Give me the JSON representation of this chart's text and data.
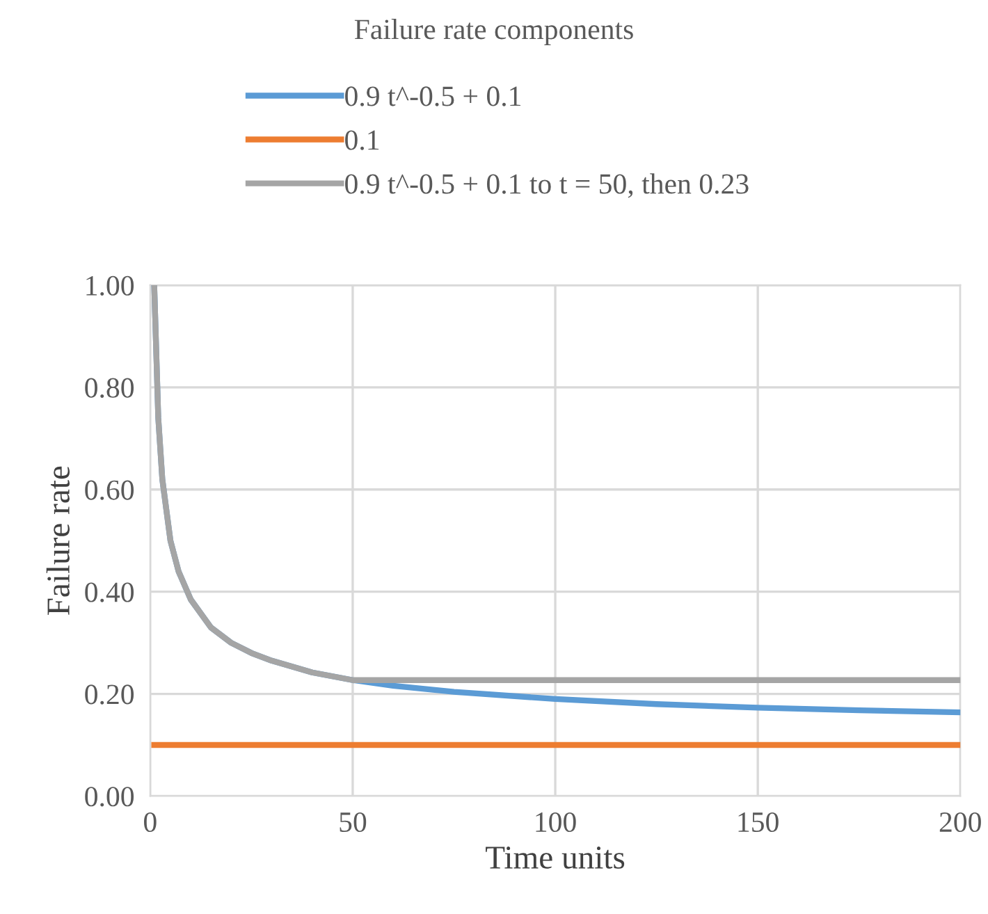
{
  "chart_data": {
    "type": "line",
    "title": "Failure rate components",
    "xlabel": "Time units",
    "ylabel": "Failure rate",
    "series": [
      {
        "name": "0.9 t^-0.5 + 0.1",
        "color": "#5b9bd5",
        "x": [
          1,
          2,
          3,
          5,
          7,
          10,
          15,
          20,
          25,
          30,
          40,
          50,
          60,
          75,
          100,
          125,
          150,
          175,
          200
        ],
        "values": [
          1.0,
          0.74,
          0.62,
          0.5,
          0.44,
          0.385,
          0.33,
          0.3,
          0.28,
          0.265,
          0.242,
          0.227,
          0.216,
          0.204,
          0.19,
          0.18,
          0.173,
          0.168,
          0.164
        ]
      },
      {
        "name": "0.1",
        "color": "#ed7d31",
        "x": [
          1,
          200
        ],
        "values": [
          0.1,
          0.1
        ]
      },
      {
        "name": "0.9 t^-0.5 + 0.1 to t = 50, then 0.23",
        "color": "#a5a5a5",
        "x": [
          1,
          2,
          3,
          5,
          7,
          10,
          15,
          20,
          25,
          30,
          40,
          50,
          200
        ],
        "values": [
          1.0,
          0.74,
          0.62,
          0.5,
          0.44,
          0.385,
          0.33,
          0.3,
          0.28,
          0.265,
          0.242,
          0.227,
          0.227
        ]
      }
    ],
    "xlim": [
      0,
      200
    ],
    "xticks": [
      0,
      50,
      100,
      150,
      200
    ],
    "ylim": [
      0,
      1
    ],
    "yticks": [
      {
        "value": 0,
        "label": "0.00"
      },
      {
        "value": 0.2,
        "label": "0.20"
      },
      {
        "value": 0.4,
        "label": "0.40"
      },
      {
        "value": 0.6,
        "label": "0.60"
      },
      {
        "value": 0.8,
        "label": "0.80"
      },
      {
        "value": 1,
        "label": "1.00"
      }
    ],
    "grid": true,
    "legend": "top",
    "marker": "none",
    "line_style": "solid"
  }
}
